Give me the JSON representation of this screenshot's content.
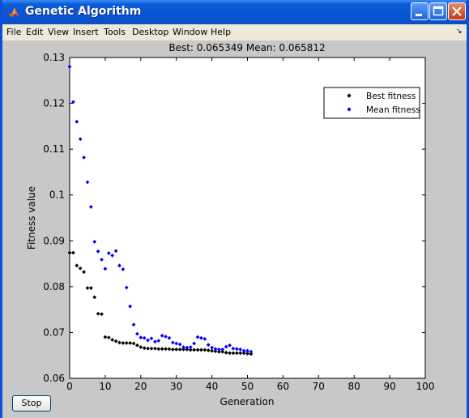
{
  "window": {
    "title": "Genetic Algorithm"
  },
  "menu": {
    "items": [
      "File",
      "Edit",
      "View",
      "Insert",
      "Tools",
      "Desktop",
      "Window",
      "Help"
    ]
  },
  "controls": {
    "stop_label": "Stop"
  },
  "chart_data": {
    "type": "scatter",
    "title": "Best: 0.065349 Mean: 0.065812",
    "xlabel": "Generation",
    "ylabel": "Fitness value",
    "xlim": [
      0,
      100
    ],
    "ylim": [
      0.06,
      0.13
    ],
    "xticks": [
      0,
      10,
      20,
      30,
      40,
      50,
      60,
      70,
      80,
      90,
      100
    ],
    "yticks": [
      0.06,
      0.07,
      0.08,
      0.09,
      0.1,
      0.11,
      0.12,
      0.13
    ],
    "ytick_labels": [
      "0.06",
      "0.07",
      "0.08",
      "0.09",
      "0.1",
      "0.11",
      "0.12",
      "0.13"
    ],
    "grid": false,
    "legend_position": "top-right",
    "series": [
      {
        "name": "Best fitness",
        "color": "#000000",
        "marker": "diamond",
        "x": [
          0,
          1,
          2,
          3,
          4,
          5,
          6,
          7,
          8,
          9,
          10,
          11,
          12,
          13,
          14,
          15,
          16,
          17,
          18,
          19,
          20,
          21,
          22,
          23,
          24,
          25,
          26,
          27,
          28,
          29,
          30,
          31,
          32,
          33,
          34,
          35,
          36,
          37,
          38,
          39,
          40,
          41,
          42,
          43,
          44,
          45,
          46,
          47,
          48,
          49,
          50,
          51
        ],
        "y": [
          0.0874,
          0.0874,
          0.0846,
          0.084,
          0.0832,
          0.0797,
          0.0797,
          0.0777,
          0.0741,
          0.074,
          0.069,
          0.0689,
          0.0684,
          0.0681,
          0.0678,
          0.0677,
          0.0677,
          0.0677,
          0.0676,
          0.0672,
          0.0668,
          0.0666,
          0.0665,
          0.0665,
          0.0665,
          0.0664,
          0.0664,
          0.0664,
          0.0664,
          0.0663,
          0.0663,
          0.0663,
          0.0663,
          0.0663,
          0.0662,
          0.0662,
          0.0662,
          0.0662,
          0.0662,
          0.0661,
          0.066,
          0.0659,
          0.0658,
          0.0658,
          0.0656,
          0.0655,
          0.0655,
          0.0655,
          0.0655,
          0.0655,
          0.0654,
          0.0653
        ]
      },
      {
        "name": "Mean fitness",
        "color": "#0000ff",
        "marker": "diamond",
        "x": [
          0,
          1,
          2,
          3,
          4,
          5,
          6,
          7,
          8,
          9,
          10,
          11,
          12,
          13,
          14,
          15,
          16,
          17,
          18,
          19,
          20,
          21,
          22,
          23,
          24,
          25,
          26,
          27,
          28,
          29,
          30,
          31,
          32,
          33,
          34,
          35,
          36,
          37,
          38,
          39,
          40,
          41,
          42,
          43,
          44,
          45,
          46,
          47,
          48,
          49,
          50,
          51
        ],
        "y": [
          0.128,
          0.1203,
          0.116,
          0.1122,
          0.1082,
          0.1028,
          0.0974,
          0.0898,
          0.0877,
          0.0859,
          0.0839,
          0.0873,
          0.0868,
          0.0878,
          0.0846,
          0.0838,
          0.0798,
          0.0757,
          0.0717,
          0.0697,
          0.0689,
          0.0688,
          0.0683,
          0.0687,
          0.068,
          0.0682,
          0.0693,
          0.0691,
          0.0688,
          0.0678,
          0.0676,
          0.0674,
          0.0668,
          0.0667,
          0.0668,
          0.0676,
          0.069,
          0.0688,
          0.0686,
          0.0673,
          0.0667,
          0.0664,
          0.0663,
          0.0663,
          0.0669,
          0.0672,
          0.0665,
          0.0664,
          0.0663,
          0.066,
          0.066,
          0.0658
        ]
      }
    ]
  }
}
